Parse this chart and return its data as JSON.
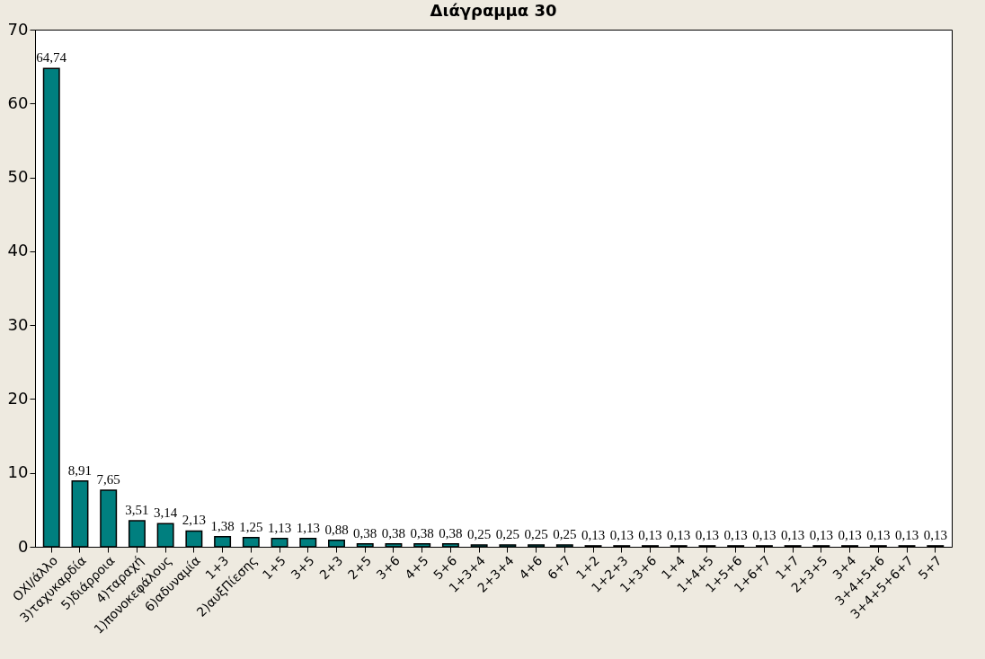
{
  "chart_data": {
    "type": "bar",
    "title": "Διάγραμμα 30",
    "categories": [
      "ΟΧΙ/άλλο",
      "3)ταχυκαρδία",
      "5)διάρροια",
      "4)ταραχή",
      "1)πονοκεφάλους",
      "6)αδυναμία",
      "1+3",
      "2)αυξΠίεσης",
      "1+5",
      "3+5",
      "2+3",
      "2+5",
      "3+6",
      "4+5",
      "5+6",
      "1+3+4",
      "2+3+4",
      "4+6",
      "6+7",
      "1+2",
      "1+2+3",
      "1+3+6",
      "1+4",
      "1+4+5",
      "1+5+6",
      "1+6+7",
      "1+7",
      "2+3+5",
      "3+4",
      "3+4+5+6",
      "3+4+5+6+7",
      "5+7"
    ],
    "values": [
      64.74,
      8.91,
      7.65,
      3.51,
      3.14,
      2.13,
      1.38,
      1.25,
      1.13,
      1.13,
      0.88,
      0.38,
      0.38,
      0.38,
      0.38,
      0.25,
      0.25,
      0.25,
      0.25,
      0.13,
      0.13,
      0.13,
      0.13,
      0.13,
      0.13,
      0.13,
      0.13,
      0.13,
      0.13,
      0.13,
      0.13,
      0.13
    ],
    "value_labels": [
      "64,74",
      "8,91",
      "7,65",
      "3,51",
      "3,14",
      "2,13",
      "1,38",
      "1,25",
      "1,13",
      "1,13",
      "0,88",
      "0,38",
      "0,38",
      "0,38",
      "0,38",
      "0,25",
      "0,25",
      "0,25",
      "0,25",
      "0,13",
      "0,13",
      "0,13",
      "0,13",
      "0,13",
      "0,13",
      "0,13",
      "0,13",
      "0,13",
      "0,13",
      "0,13",
      "0,13",
      "0,13"
    ],
    "color": "#007f7f",
    "ylim": [
      0,
      70
    ],
    "yticks": [
      0,
      10,
      20,
      30,
      40,
      50,
      60,
      70
    ],
    "grid": false
  }
}
